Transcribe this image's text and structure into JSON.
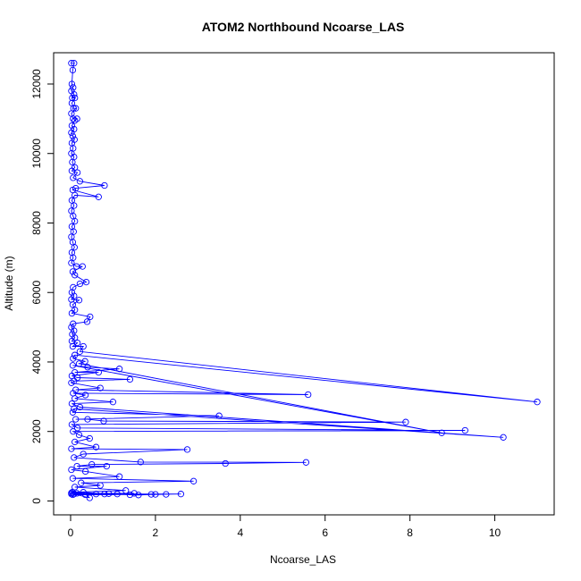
{
  "chart_data": {
    "type": "line",
    "title": "ATOM2 Northbound Ncoarse_LAS",
    "xlabel": "Ncoarse_LAS",
    "ylabel": "Altitude (m)",
    "xlim": [
      -0.4,
      11.4
    ],
    "ylim": [
      -400,
      12900
    ],
    "x_ticks": [
      0,
      2,
      4,
      6,
      8,
      10
    ],
    "y_ticks": [
      0,
      2000,
      4000,
      6000,
      8000,
      10000,
      12000
    ],
    "x_tick_labels": [
      "0",
      "2",
      "4",
      "6",
      "8",
      "10"
    ],
    "y_tick_labels": [
      "0",
      "2000",
      "4000",
      "6000",
      "8000",
      "10000",
      "12000"
    ],
    "grid": false,
    "marker": "open-circle",
    "color": "#0000ff",
    "series": [
      {
        "points": [
          [
            0.02,
            12600
          ],
          [
            0.08,
            12600
          ],
          [
            0.05,
            12400
          ],
          [
            0.03,
            12000
          ],
          [
            0.06,
            11900
          ],
          [
            0.02,
            11800
          ],
          [
            0.08,
            11700
          ],
          [
            0.04,
            11600
          ],
          [
            0.1,
            11600
          ],
          [
            0.03,
            11450
          ],
          [
            0.07,
            11300
          ],
          [
            0.12,
            11300
          ],
          [
            0.02,
            11150
          ],
          [
            0.06,
            11000
          ],
          [
            0.15,
            11000
          ],
          [
            0.1,
            10950
          ],
          [
            0.03,
            10800
          ],
          [
            0.08,
            10700
          ],
          [
            0.02,
            10600
          ],
          [
            0.05,
            10500
          ],
          [
            0.09,
            10400
          ],
          [
            0.03,
            10300
          ],
          [
            0.06,
            10150
          ],
          [
            0.02,
            10000
          ],
          [
            0.08,
            9900
          ],
          [
            0.04,
            9750
          ],
          [
            0.1,
            9600
          ],
          [
            0.03,
            9500
          ],
          [
            0.16,
            9450
          ],
          [
            0.06,
            9300
          ],
          [
            0.22,
            9200
          ],
          [
            0.8,
            9080
          ],
          [
            0.12,
            9000
          ],
          [
            0.05,
            8950
          ],
          [
            0.66,
            8750
          ],
          [
            0.1,
            8800
          ],
          [
            0.03,
            8650
          ],
          [
            0.08,
            8500
          ],
          [
            0.02,
            8350
          ],
          [
            0.06,
            8200
          ],
          [
            0.1,
            8050
          ],
          [
            0.03,
            7900
          ],
          [
            0.07,
            7750
          ],
          [
            0.02,
            7600
          ],
          [
            0.05,
            7450
          ],
          [
            0.09,
            7300
          ],
          [
            0.03,
            7150
          ],
          [
            0.06,
            7000
          ],
          [
            0.02,
            6850
          ],
          [
            0.14,
            6750
          ],
          [
            0.28,
            6750
          ],
          [
            0.05,
            6600
          ],
          [
            0.1,
            6500
          ],
          [
            0.37,
            6300
          ],
          [
            0.22,
            6250
          ],
          [
            0.06,
            6150
          ],
          [
            0.03,
            6000
          ],
          [
            0.08,
            5900
          ],
          [
            0.02,
            5800
          ],
          [
            0.2,
            5780
          ],
          [
            0.05,
            5650
          ],
          [
            0.1,
            5500
          ],
          [
            0.03,
            5400
          ],
          [
            0.46,
            5300
          ],
          [
            0.39,
            5160
          ],
          [
            0.06,
            5100
          ],
          [
            0.02,
            5000
          ],
          [
            0.08,
            4900
          ],
          [
            0.04,
            4800
          ],
          [
            0.1,
            4700
          ],
          [
            0.03,
            4600
          ],
          [
            0.16,
            4550
          ],
          [
            0.05,
            4450
          ],
          [
            0.3,
            4450
          ],
          [
            0.22,
            4300
          ],
          [
            11.0,
            2850
          ],
          [
            0.1,
            4200
          ],
          [
            0.06,
            4100
          ],
          [
            0.34,
            4020
          ],
          [
            0.2,
            3950
          ],
          [
            8.75,
            1960
          ],
          [
            0.05,
            3900
          ],
          [
            0.4,
            3850
          ],
          [
            1.15,
            3800
          ],
          [
            0.1,
            3700
          ],
          [
            0.66,
            3700
          ],
          [
            0.03,
            3600
          ],
          [
            0.16,
            3550
          ],
          [
            1.4,
            3500
          ],
          [
            0.08,
            3450
          ],
          [
            0.02,
            3400
          ],
          [
            0.7,
            3250
          ],
          [
            0.12,
            3200
          ],
          [
            5.6,
            3060
          ],
          [
            0.06,
            3100
          ],
          [
            0.35,
            3050
          ],
          [
            0.1,
            2950
          ],
          [
            1.0,
            2850
          ],
          [
            0.03,
            2800
          ],
          [
            0.22,
            2700
          ],
          [
            10.2,
            1830
          ],
          [
            0.08,
            2650
          ],
          [
            0.05,
            2550
          ],
          [
            3.5,
            2450
          ],
          [
            0.12,
            2350
          ],
          [
            0.4,
            2350
          ],
          [
            0.78,
            2300
          ],
          [
            7.9,
            2270
          ],
          [
            0.03,
            2200
          ],
          [
            0.16,
            2100
          ],
          [
            9.3,
            2030
          ],
          [
            0.06,
            2000
          ],
          [
            0.2,
            1900
          ],
          [
            0.45,
            1800
          ],
          [
            0.1,
            1700
          ],
          [
            0.6,
            1550
          ],
          [
            0.02,
            1500
          ],
          [
            2.75,
            1480
          ],
          [
            0.3,
            1350
          ],
          [
            0.08,
            1250
          ],
          [
            1.65,
            1120
          ],
          [
            5.55,
            1110
          ],
          [
            3.65,
            1080
          ],
          [
            0.5,
            1050
          ],
          [
            0.15,
            1000
          ],
          [
            0.85,
            1000
          ],
          [
            0.02,
            900
          ],
          [
            0.35,
            850
          ],
          [
            1.15,
            700
          ],
          [
            0.05,
            650
          ],
          [
            2.9,
            570
          ],
          [
            0.25,
            520
          ],
          [
            0.7,
            450
          ],
          [
            0.1,
            400
          ],
          [
            1.3,
            300
          ],
          [
            0.04,
            250
          ],
          [
            0.6,
            200
          ],
          [
            2.6,
            200
          ],
          [
            1.4,
            180
          ],
          [
            2.25,
            190
          ],
          [
            0.05,
            180
          ],
          [
            1.9,
            190
          ],
          [
            0.9,
            210
          ],
          [
            0.02,
            230
          ],
          [
            1.6,
            170
          ],
          [
            2.0,
            190
          ],
          [
            0.35,
            180
          ],
          [
            1.1,
            200
          ],
          [
            0.08,
            200
          ],
          [
            0.45,
            90
          ],
          [
            0.3,
            250
          ],
          [
            0.8,
            200
          ],
          [
            1.5,
            220
          ],
          [
            0.15,
            220
          ],
          [
            0.02,
            200
          ]
        ]
      }
    ]
  }
}
